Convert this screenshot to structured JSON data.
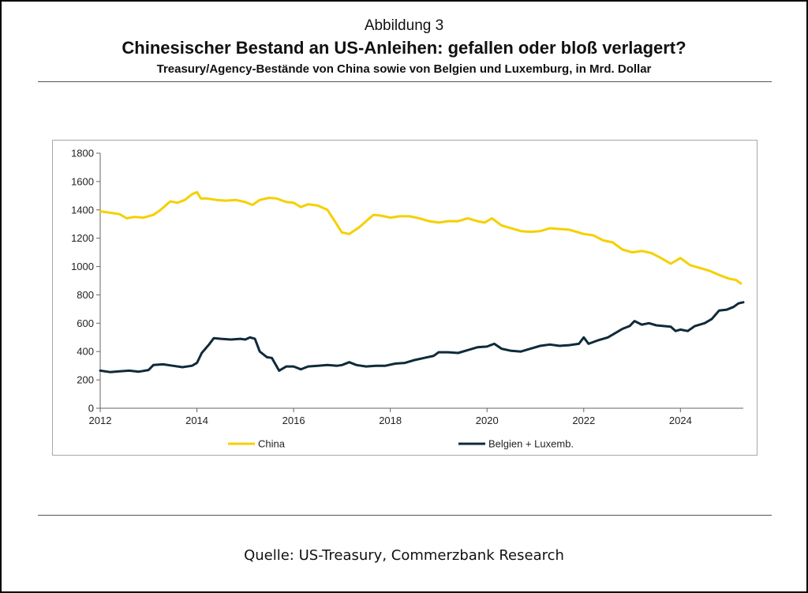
{
  "figure_label": "Abbildung 3",
  "title": "Chinesischer Bestand an US-Anleihen: gefallen oder bloß verlagert?",
  "subtitle": "Treasury/Agency-Bestände von China sowie von Belgien und Luxemburg, in Mrd. Dollar",
  "source": "Quelle: US-Treasury, Commerzbank Research",
  "chart_data": {
    "type": "line",
    "x_tick_labels": [
      "2012",
      "2014",
      "2016",
      "2018",
      "2020",
      "2022",
      "2024"
    ],
    "y_tick_labels": [
      "0",
      "200",
      "400",
      "600",
      "800",
      "1000",
      "1200",
      "1400",
      "1600",
      "1800"
    ],
    "xlim": [
      2012,
      2025.3
    ],
    "ylim": [
      0,
      1800
    ],
    "grid": false,
    "legend_position": "bottom",
    "series": [
      {
        "name": "China",
        "color": "#f5d000",
        "points": [
          [
            2012.0,
            1390
          ],
          [
            2012.2,
            1380
          ],
          [
            2012.4,
            1370
          ],
          [
            2012.55,
            1340
          ],
          [
            2012.7,
            1350
          ],
          [
            2012.9,
            1345
          ],
          [
            2013.1,
            1365
          ],
          [
            2013.25,
            1400
          ],
          [
            2013.45,
            1460
          ],
          [
            2013.6,
            1450
          ],
          [
            2013.75,
            1470
          ],
          [
            2013.9,
            1510
          ],
          [
            2014.0,
            1525
          ],
          [
            2014.08,
            1480
          ],
          [
            2014.2,
            1480
          ],
          [
            2014.4,
            1470
          ],
          [
            2014.6,
            1465
          ],
          [
            2014.8,
            1470
          ],
          [
            2015.0,
            1455
          ],
          [
            2015.15,
            1435
          ],
          [
            2015.3,
            1470
          ],
          [
            2015.5,
            1485
          ],
          [
            2015.65,
            1480
          ],
          [
            2015.85,
            1455
          ],
          [
            2016.0,
            1450
          ],
          [
            2016.15,
            1420
          ],
          [
            2016.3,
            1440
          ],
          [
            2016.5,
            1430
          ],
          [
            2016.7,
            1400
          ],
          [
            2016.85,
            1320
          ],
          [
            2017.0,
            1240
          ],
          [
            2017.15,
            1230
          ],
          [
            2017.35,
            1275
          ],
          [
            2017.5,
            1320
          ],
          [
            2017.65,
            1365
          ],
          [
            2017.8,
            1360
          ],
          [
            2018.0,
            1345
          ],
          [
            2018.2,
            1355
          ],
          [
            2018.4,
            1355
          ],
          [
            2018.6,
            1340
          ],
          [
            2018.8,
            1320
          ],
          [
            2019.0,
            1310
          ],
          [
            2019.2,
            1320
          ],
          [
            2019.4,
            1320
          ],
          [
            2019.6,
            1340
          ],
          [
            2019.8,
            1320
          ],
          [
            2019.95,
            1310
          ],
          [
            2020.1,
            1340
          ],
          [
            2020.3,
            1290
          ],
          [
            2020.5,
            1270
          ],
          [
            2020.7,
            1250
          ],
          [
            2020.9,
            1245
          ],
          [
            2021.1,
            1250
          ],
          [
            2021.3,
            1270
          ],
          [
            2021.5,
            1265
          ],
          [
            2021.7,
            1260
          ],
          [
            2021.9,
            1240
          ],
          [
            2022.0,
            1230
          ],
          [
            2022.2,
            1220
          ],
          [
            2022.4,
            1185
          ],
          [
            2022.6,
            1170
          ],
          [
            2022.8,
            1120
          ],
          [
            2023.0,
            1100
          ],
          [
            2023.2,
            1110
          ],
          [
            2023.4,
            1095
          ],
          [
            2023.6,
            1060
          ],
          [
            2023.8,
            1020
          ],
          [
            2024.0,
            1060
          ],
          [
            2024.2,
            1010
          ],
          [
            2024.4,
            990
          ],
          [
            2024.6,
            970
          ],
          [
            2024.8,
            940
          ],
          [
            2025.0,
            915
          ],
          [
            2025.15,
            905
          ],
          [
            2025.25,
            880
          ]
        ]
      },
      {
        "name": "Belgien + Luxemb.",
        "color": "#0f2a3a",
        "points": [
          [
            2012.0,
            265
          ],
          [
            2012.2,
            255
          ],
          [
            2012.4,
            260
          ],
          [
            2012.6,
            265
          ],
          [
            2012.8,
            258
          ],
          [
            2013.0,
            270
          ],
          [
            2013.1,
            305
          ],
          [
            2013.3,
            310
          ],
          [
            2013.5,
            300
          ],
          [
            2013.7,
            290
          ],
          [
            2013.9,
            300
          ],
          [
            2014.0,
            320
          ],
          [
            2014.1,
            390
          ],
          [
            2014.25,
            450
          ],
          [
            2014.35,
            495
          ],
          [
            2014.5,
            490
          ],
          [
            2014.7,
            485
          ],
          [
            2014.9,
            490
          ],
          [
            2015.0,
            485
          ],
          [
            2015.1,
            500
          ],
          [
            2015.2,
            490
          ],
          [
            2015.3,
            400
          ],
          [
            2015.45,
            360
          ],
          [
            2015.55,
            355
          ],
          [
            2015.7,
            265
          ],
          [
            2015.85,
            295
          ],
          [
            2016.0,
            295
          ],
          [
            2016.15,
            275
          ],
          [
            2016.3,
            295
          ],
          [
            2016.5,
            300
          ],
          [
            2016.7,
            305
          ],
          [
            2016.9,
            300
          ],
          [
            2017.0,
            305
          ],
          [
            2017.15,
            325
          ],
          [
            2017.3,
            305
          ],
          [
            2017.5,
            295
          ],
          [
            2017.7,
            300
          ],
          [
            2017.9,
            300
          ],
          [
            2018.1,
            315
          ],
          [
            2018.3,
            320
          ],
          [
            2018.5,
            340
          ],
          [
            2018.7,
            355
          ],
          [
            2018.9,
            370
          ],
          [
            2019.0,
            395
          ],
          [
            2019.2,
            395
          ],
          [
            2019.4,
            390
          ],
          [
            2019.6,
            410
          ],
          [
            2019.8,
            430
          ],
          [
            2020.0,
            435
          ],
          [
            2020.15,
            455
          ],
          [
            2020.3,
            420
          ],
          [
            2020.5,
            405
          ],
          [
            2020.7,
            400
          ],
          [
            2020.9,
            420
          ],
          [
            2021.1,
            440
          ],
          [
            2021.3,
            450
          ],
          [
            2021.5,
            440
          ],
          [
            2021.7,
            445
          ],
          [
            2021.9,
            455
          ],
          [
            2022.0,
            500
          ],
          [
            2022.1,
            455
          ],
          [
            2022.3,
            480
          ],
          [
            2022.5,
            500
          ],
          [
            2022.65,
            530
          ],
          [
            2022.8,
            560
          ],
          [
            2022.95,
            580
          ],
          [
            2023.05,
            615
          ],
          [
            2023.2,
            590
          ],
          [
            2023.35,
            600
          ],
          [
            2023.5,
            585
          ],
          [
            2023.65,
            580
          ],
          [
            2023.8,
            575
          ],
          [
            2023.9,
            545
          ],
          [
            2024.0,
            555
          ],
          [
            2024.15,
            545
          ],
          [
            2024.3,
            580
          ],
          [
            2024.5,
            600
          ],
          [
            2024.65,
            630
          ],
          [
            2024.8,
            690
          ],
          [
            2024.95,
            695
          ],
          [
            2025.1,
            715
          ],
          [
            2025.2,
            740
          ],
          [
            2025.3,
            748
          ]
        ]
      }
    ]
  }
}
